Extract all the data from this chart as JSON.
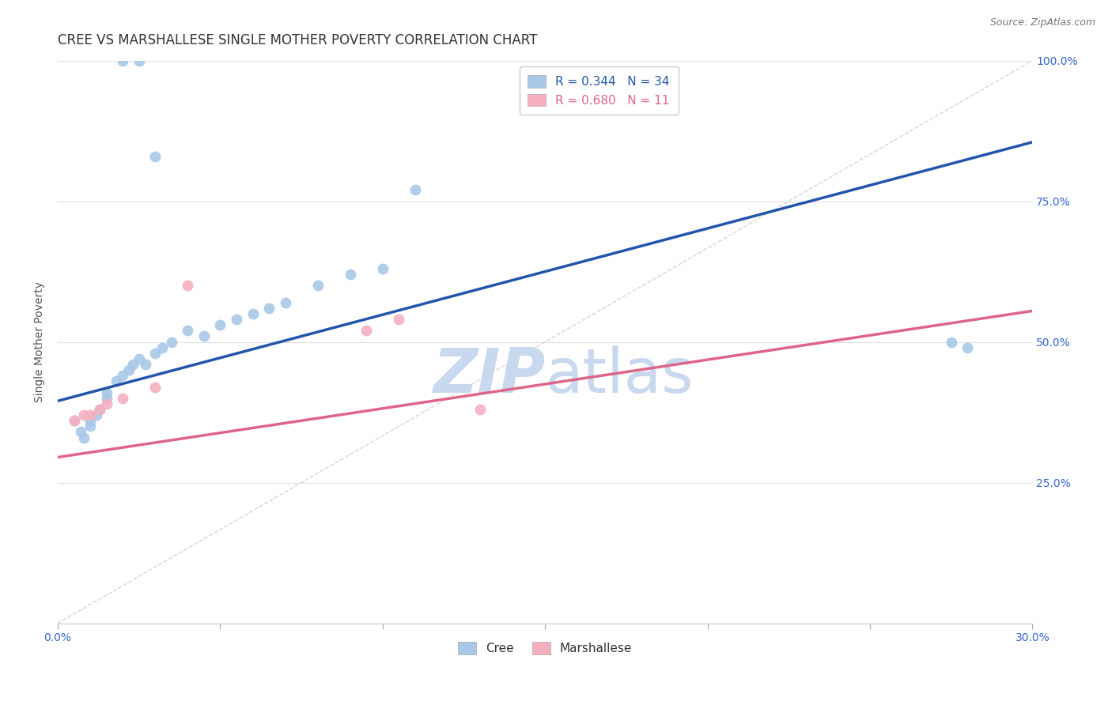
{
  "title": "CREE VS MARSHALLESE SINGLE MOTHER POVERTY CORRELATION CHART",
  "source": "Source: ZipAtlas.com",
  "ylabel": "Single Mother Poverty",
  "xlim": [
    0,
    0.3
  ],
  "ylim": [
    0,
    1.0
  ],
  "xticks": [
    0.0,
    0.05,
    0.1,
    0.15,
    0.2,
    0.25,
    0.3
  ],
  "yticks": [
    0.0,
    0.25,
    0.5,
    0.75,
    1.0
  ],
  "cree_R": 0.344,
  "cree_N": 34,
  "marshallese_R": 0.68,
  "marshallese_N": 11,
  "cree_color": "#a8c8e8",
  "marshallese_color": "#f5b0c0",
  "cree_line_color": "#2255aa",
  "marshallese_line_color": "#dd6688",
  "diag_color": "#cccccc",
  "background_color": "#ffffff",
  "grid_color": "#e0e0e0",
  "cree_x": [
    0.005,
    0.007,
    0.008,
    0.01,
    0.01,
    0.012,
    0.013,
    0.015,
    0.015,
    0.018,
    0.02,
    0.022,
    0.023,
    0.025,
    0.027,
    0.03,
    0.032,
    0.035,
    0.04,
    0.045,
    0.05,
    0.055,
    0.06,
    0.065,
    0.07,
    0.08,
    0.09,
    0.1,
    0.11,
    0.02,
    0.025,
    0.03,
    0.275,
    0.28
  ],
  "cree_y": [
    0.36,
    0.34,
    0.33,
    0.35,
    0.36,
    0.37,
    0.38,
    0.4,
    0.41,
    0.43,
    0.44,
    0.45,
    0.46,
    0.47,
    0.46,
    0.48,
    0.49,
    0.5,
    0.52,
    0.51,
    0.53,
    0.54,
    0.55,
    0.56,
    0.57,
    0.6,
    0.62,
    0.63,
    0.77,
    1.0,
    1.0,
    0.83,
    0.5,
    0.49
  ],
  "marshallese_x": [
    0.005,
    0.008,
    0.01,
    0.013,
    0.015,
    0.02,
    0.03,
    0.04,
    0.095,
    0.105,
    0.13
  ],
  "marshallese_y": [
    0.36,
    0.37,
    0.37,
    0.38,
    0.39,
    0.4,
    0.42,
    0.6,
    0.52,
    0.54,
    0.38
  ],
  "watermark_zip": "ZIP",
  "watermark_atlas": "atlas",
  "watermark_color": "#c8d8ee",
  "title_fontsize": 12,
  "axis_label_fontsize": 10,
  "tick_fontsize": 10,
  "legend_fontsize": 11
}
